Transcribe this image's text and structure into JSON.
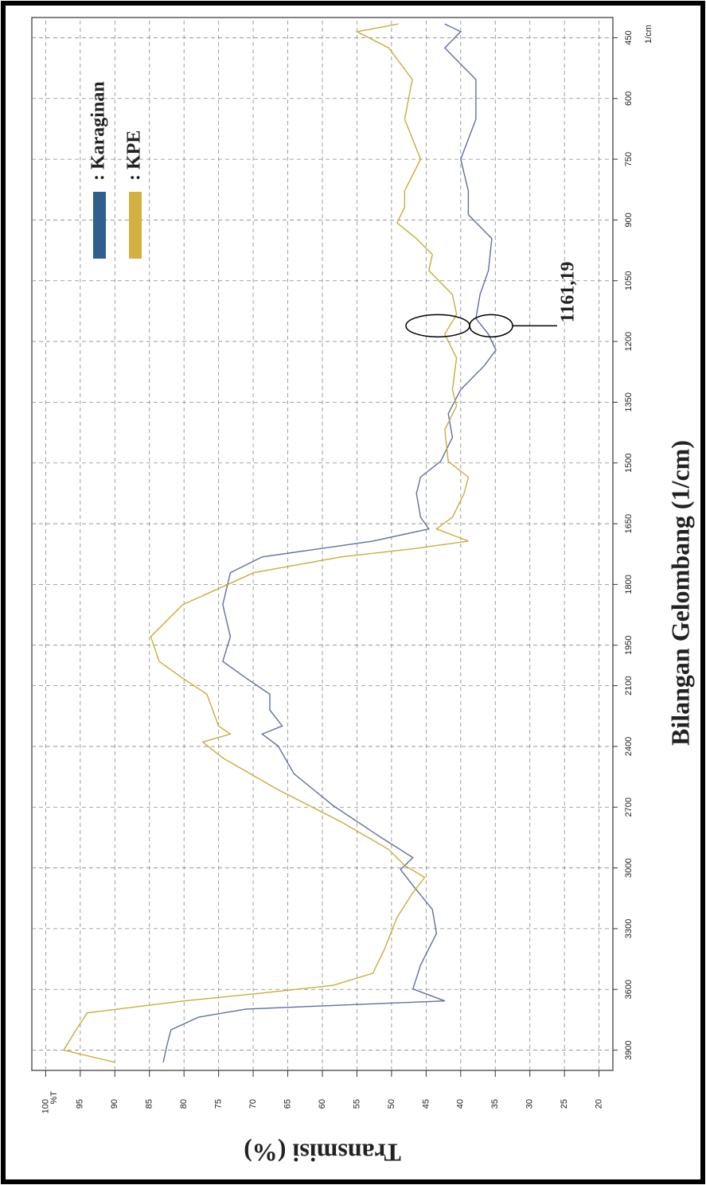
{
  "chart_data": {
    "type": "line",
    "x_label": "Bilangan Gelombang (1/cm)",
    "y_label": "Transmisi (%)",
    "x_unit": "1/cm",
    "y_unit": "%T",
    "xlim": [
      4000,
      400
    ],
    "x_scale_break": 2000,
    "x_scale_ratio": 2,
    "xticks": [
      450,
      600,
      750,
      900,
      1050,
      1200,
      1350,
      1500,
      1650,
      1800,
      1950,
      2100,
      2400,
      2700,
      3000,
      3300,
      3600,
      3900
    ],
    "ylim": [
      18,
      102
    ],
    "yticks": [
      20,
      25,
      30,
      35,
      40,
      45,
      50,
      55,
      60,
      65,
      70,
      75,
      80,
      85,
      90,
      95,
      100
    ],
    "grid": true,
    "legend": "top-right",
    "annotation": {
      "text": "1161,19",
      "x": 1161.19
    },
    "series": [
      {
        "name": ": Karaginan",
        "color": "#5f6fa3",
        "legend_color": "#2f5f8f",
        "x": [
          3960,
          3880,
          3800,
          3737,
          3697,
          3657,
          3598,
          3480,
          3323,
          3205,
          3087,
          3008,
          2949,
          2850,
          2693,
          2535,
          2398,
          2339,
          2299,
          2220,
          2142,
          2063,
          1990,
          1929,
          1850,
          1771,
          1732,
          1693,
          1663,
          1634,
          1575,
          1535,
          1496,
          1437,
          1378,
          1319,
          1260,
          1221,
          1182,
          1143,
          1084,
          1025,
          946,
          887,
          828,
          750,
          651,
          553,
          475,
          435,
          416
        ],
        "values": [
          83,
          82.5,
          81.9,
          77.9,
          71,
          42.3,
          46.9,
          45.8,
          43.5,
          44.1,
          46.9,
          48.7,
          46.9,
          51.5,
          58.4,
          64.1,
          66.4,
          68.7,
          65.8,
          67.6,
          67.6,
          71,
          74.4,
          73.3,
          74.4,
          73.3,
          68.7,
          52.7,
          44.6,
          45.8,
          46.4,
          45.8,
          42.9,
          41.2,
          41.8,
          40,
          36.6,
          34.9,
          36,
          37.8,
          37.2,
          36,
          35.5,
          38.9,
          38.9,
          40,
          37.8,
          37.8,
          42.3,
          40,
          42.3
        ]
      },
      {
        "name": ": KPE",
        "color": "#c9ad3a",
        "legend_color": "#d4b040",
        "x": [
          3960,
          3900,
          3800,
          3716,
          3657,
          3618,
          3580,
          3520,
          3400,
          3244,
          3126,
          3047,
          2988,
          2909,
          2772,
          2614,
          2457,
          2378,
          2339,
          2299,
          2142,
          2063,
          1990,
          1929,
          1850,
          1771,
          1732,
          1712,
          1693,
          1663,
          1634,
          1575,
          1535,
          1496,
          1418,
          1359,
          1319,
          1241,
          1182,
          1133,
          1084,
          1025,
          985,
          946,
          907,
          868,
          828,
          750,
          651,
          553,
          475,
          435,
          416
        ],
        "values": [
          90,
          97.4,
          95.6,
          94,
          80,
          68.7,
          58.4,
          52.7,
          51,
          49.2,
          47,
          45.2,
          48.1,
          50.4,
          57.3,
          66.4,
          74.4,
          77.3,
          73.3,
          75,
          76.7,
          80.2,
          83.6,
          84.8,
          80.2,
          69.9,
          57.3,
          46.9,
          38.9,
          43.5,
          41.2,
          39.5,
          38.9,
          41.8,
          42.3,
          40.6,
          41.2,
          40.6,
          42.3,
          40.6,
          41.2,
          44.6,
          44.1,
          46.4,
          49.2,
          48.1,
          48.1,
          45.8,
          48.1,
          47,
          50.4,
          55,
          49
        ]
      }
    ]
  }
}
